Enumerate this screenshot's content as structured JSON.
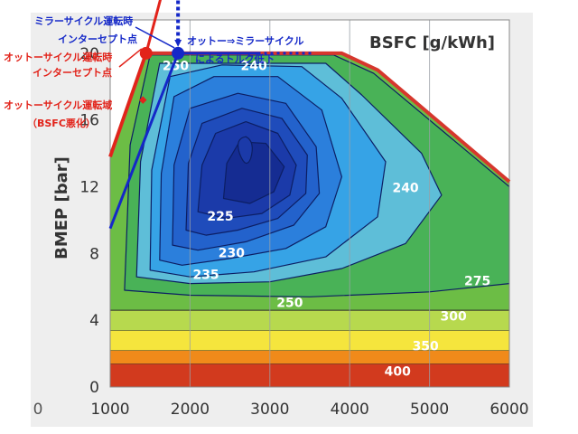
{
  "chart_data": {
    "type": "heatmap",
    "title": "BSFC [g/kWh]",
    "xlabel": "",
    "ylabel": "BMEP [bar]",
    "xlim": [
      1000,
      6000
    ],
    "ylim": [
      0,
      22
    ],
    "x_ticks": [
      1000,
      2000,
      3000,
      4000,
      5000,
      6000
    ],
    "y_ticks": [
      0,
      4,
      8,
      12,
      16,
      20
    ],
    "stray_tick": "0",
    "grid": true,
    "bands": [
      {
        "lo": 0,
        "hi": 1.4,
        "color": "#d23a1e"
      },
      {
        "lo": 1.4,
        "hi": 2.2,
        "color": "#f08a1a"
      },
      {
        "lo": 2.2,
        "hi": 3.4,
        "color": "#f5e53d"
      },
      {
        "lo": 3.4,
        "hi": 4.6,
        "color": "#b7d94e"
      }
    ],
    "contour_fills": {
      "275": "#6cbd45",
      "260": "#49b257",
      "250": "#5ebed8",
      "245": "#36a3e6",
      "240": "#2b7fdc",
      "235": "#2362cc",
      "230": "#1f4cbb",
      "225": "#1b3aa9",
      "220": "#152c92"
    },
    "contour_labels": [
      {
        "text": "250",
        "x": 1820,
        "y": 19.2,
        "color": "#ffffff"
      },
      {
        "text": "240",
        "x": 2800,
        "y": 19.2,
        "color": "#ffffff"
      },
      {
        "text": "225",
        "x": 2380,
        "y": 10.2,
        "color": "#ffffff"
      },
      {
        "text": "230",
        "x": 2520,
        "y": 8.0,
        "color": "#ffffff"
      },
      {
        "text": "235",
        "x": 2200,
        "y": 6.7,
        "color": "#ffffff"
      },
      {
        "text": "250",
        "x": 3250,
        "y": 5.0,
        "color": "#ffffff"
      },
      {
        "text": "240",
        "x": 4700,
        "y": 11.9,
        "color": "#ffffff"
      },
      {
        "text": "275",
        "x": 5600,
        "y": 6.3,
        "color": "#ffffff"
      },
      {
        "text": "300",
        "x": 5300,
        "y": 4.2,
        "color": "#ffffff"
      },
      {
        "text": "350",
        "x": 4950,
        "y": 2.4,
        "color": "#ffffff"
      },
      {
        "text": "400",
        "x": 4600,
        "y": 0.9,
        "color": "#ffffff"
      }
    ],
    "full_load_line": {
      "color": "#d6372d",
      "points": [
        [
          1000,
          13.8
        ],
        [
          1450,
          20
        ],
        [
          3900,
          20
        ],
        [
          4350,
          19
        ],
        [
          6000,
          12.3
        ]
      ]
    },
    "otto_knock_limit_line": {
      "color": "#e2231a",
      "points": [
        [
          1000,
          13.8
        ],
        [
          1450,
          20
        ],
        [
          1850,
          27.2
        ],
        [
          2650,
          27.2
        ]
      ],
      "dotted_points": [
        [
          2650,
          27.2
        ],
        [
          3300,
          27.2
        ]
      ]
    },
    "miller_line": {
      "color": "#1428c8",
      "points": [
        [
          1000,
          9.5
        ],
        [
          1850,
          20
        ],
        [
          2850,
          20
        ]
      ],
      "dotted_points": [
        [
          2850,
          20
        ],
        [
          3550,
          20
        ]
      ]
    },
    "otto_intercept": {
      "x": 1450,
      "y": 20,
      "color": "#e2231a"
    },
    "miller_intercept": {
      "x": 1850,
      "y": 20,
      "color": "#1428c8"
    },
    "torque_drop_arrow": {
      "x": 1850,
      "from_y": 26.2,
      "to_y": 20.6,
      "color": "#1428c8"
    },
    "otto_region_marker": {
      "x": 1410,
      "y": 17.2,
      "color": "#e2231a"
    }
  },
  "annotations": {
    "miller_intercept_line1": "ミラーサイクル運転時",
    "miller_intercept_line2": "インターセプト点",
    "otto_intercept_line1": "オットーサイクル運転時",
    "otto_intercept_line2": "インターセプト点",
    "torque_drop_line1": "オットー⇒ミラーサイクル",
    "torque_drop_line2": "によるトルク低下",
    "otto_region_line1": "オットーサイクル運転域",
    "otto_region_line2": "（BSFC悪化）"
  }
}
